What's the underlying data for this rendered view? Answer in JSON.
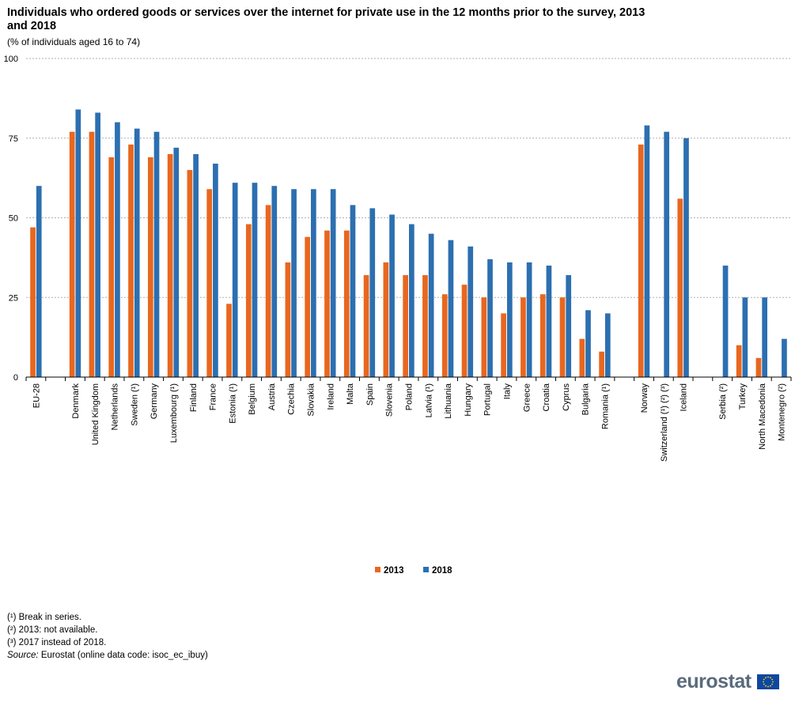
{
  "title": "Individuals who ordered goods or services over the internet for private use in the 12 months prior to the survey, 2013 and 2018",
  "subtitle": "(% of individuals  aged 16 to 74)",
  "colors": {
    "s2013": "#e8671f",
    "s2018": "#2c6fb0",
    "grid": "#b0b0b0",
    "logo_text": "#5a6b7d",
    "logo_flag": "#0e47a1",
    "logo_stars": "#ffd617"
  },
  "chart_data": {
    "type": "bar",
    "title": "Individuals who ordered goods or services over the internet for private use in the 12 months prior to the survey, 2013 and 2018",
    "ylim": [
      0,
      100
    ],
    "yticks": [
      0,
      25,
      50,
      75,
      100
    ],
    "grid": true,
    "legend_position": "bottom-center",
    "groups": [
      [
        "EU-28"
      ],
      [
        "Denmark",
        "United Kingdom",
        "Netherlands",
        "Sweden (¹)",
        "Germany",
        "Luxembourg (¹)",
        "Finland",
        "France",
        "Estonia (¹)",
        "Belgium",
        "Austria",
        "Czechia",
        "Slovakia",
        "Ireland",
        "Malta",
        "Spain",
        "Slovenia",
        "Poland",
        "Latvia (¹)",
        "Lithuania",
        "Hungary",
        "Portugal",
        "Italy",
        "Greece",
        "Croatia",
        "Cyprus",
        "Bulgaria",
        "Romania (¹)"
      ],
      [
        "Norway",
        "Switzerland (¹) (²) (³)",
        "Iceland"
      ],
      [
        "Serbia (²)",
        "Turkey",
        "North Macedonia",
        "Montenegro   (²)"
      ]
    ],
    "categories": [
      "EU-28",
      "Denmark",
      "United Kingdom",
      "Netherlands",
      "Sweden (¹)",
      "Germany",
      "Luxembourg (¹)",
      "Finland",
      "France",
      "Estonia (¹)",
      "Belgium",
      "Austria",
      "Czechia",
      "Slovakia",
      "Ireland",
      "Malta",
      "Spain",
      "Slovenia",
      "Poland",
      "Latvia (¹)",
      "Lithuania",
      "Hungary",
      "Portugal",
      "Italy",
      "Greece",
      "Croatia",
      "Cyprus",
      "Bulgaria",
      "Romania (¹)",
      "Norway",
      "Switzerland (¹) (²) (³)",
      "Iceland",
      "Serbia (²)",
      "Turkey",
      "North Macedonia",
      "Montenegro   (²)"
    ],
    "series": [
      {
        "name": "2013",
        "color": "#e8671f",
        "values": [
          47,
          77,
          77,
          69,
          73,
          69,
          70,
          65,
          59,
          23,
          48,
          54,
          36,
          44,
          46,
          46,
          32,
          36,
          32,
          32,
          26,
          29,
          25,
          20,
          25,
          26,
          25,
          12,
          8,
          73,
          null,
          56,
          null,
          10,
          6,
          null
        ]
      },
      {
        "name": "2018",
        "color": "#2c6fb0",
        "values": [
          60,
          84,
          83,
          80,
          78,
          77,
          72,
          70,
          67,
          61,
          61,
          60,
          59,
          59,
          59,
          54,
          53,
          51,
          48,
          45,
          43,
          41,
          37,
          36,
          36,
          35,
          32,
          21,
          20,
          79,
          77,
          75,
          35,
          25,
          25,
          12
        ]
      }
    ]
  },
  "footnotes": [
    "(¹) Break in series.",
    "(²) 2013: not available.",
    "(³) 2017 instead of 2018."
  ],
  "source": {
    "label": "Source:",
    "text": " Eurostat (online data code: isoc_ec_ibuy)"
  },
  "logo": {
    "text": "eurostat"
  }
}
